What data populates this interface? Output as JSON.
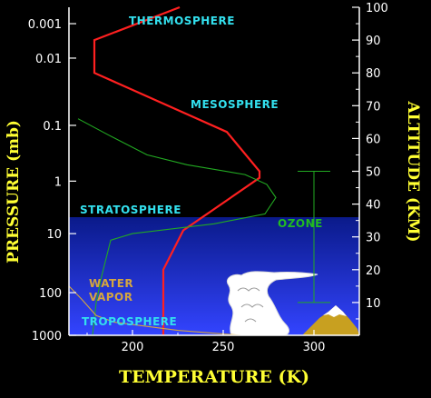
{
  "chart_data": {
    "type": "line",
    "title": "",
    "xlabel": "TEMPERATURE (K)",
    "ylabel_left": "PRESSURE (mb)",
    "ylabel_right": "ALTITUDE (KM)",
    "xlim": [
      165,
      325
    ],
    "x_ticks": [
      200,
      250,
      300
    ],
    "altitude_lim": [
      0,
      100
    ],
    "altitude_ticks": [
      10,
      20,
      30,
      40,
      50,
      60,
      70,
      80,
      90,
      100
    ],
    "pressure_ticks": [
      {
        "label": "0.001",
        "altitude": 95
      },
      {
        "label": "0.01",
        "altitude": 84.5
      },
      {
        "label": "0.1",
        "altitude": 64
      },
      {
        "label": "1",
        "altitude": 47
      },
      {
        "label": "10",
        "altitude": 31
      },
      {
        "label": "100",
        "altitude": 13
      },
      {
        "label": "1000",
        "altitude": 0
      }
    ],
    "series": [
      {
        "kind": "temperature",
        "color": "#ff2020",
        "points": [
          {
            "x": 217,
            "y": 0
          },
          {
            "x": 217,
            "y": 11
          },
          {
            "x": 217,
            "y": 20
          },
          {
            "x": 228,
            "y": 32
          },
          {
            "x": 270,
            "y": 48
          },
          {
            "x": 270,
            "y": 50
          },
          {
            "x": 252,
            "y": 62
          },
          {
            "x": 179,
            "y": 80
          },
          {
            "x": 179,
            "y": 90
          },
          {
            "x": 226,
            "y": 100
          }
        ]
      },
      {
        "kind": "ozone",
        "color": "#22aa22",
        "points": [
          {
            "x": 170,
            "y": 66
          },
          {
            "x": 187,
            "y": 61
          },
          {
            "x": 208,
            "y": 55
          },
          {
            "x": 230,
            "y": 52
          },
          {
            "x": 262,
            "y": 49
          },
          {
            "x": 274,
            "y": 46
          },
          {
            "x": 279,
            "y": 42
          },
          {
            "x": 273,
            "y": 37
          },
          {
            "x": 245,
            "y": 34
          },
          {
            "x": 200,
            "y": 31
          },
          {
            "x": 188,
            "y": 29
          },
          {
            "x": 183,
            "y": 18
          },
          {
            "x": 180,
            "y": 10
          },
          {
            "x": 178,
            "y": 0
          }
        ]
      },
      {
        "kind": "water-vapor",
        "color": "#d4a640",
        "points": [
          {
            "x": 165,
            "y": 15
          },
          {
            "x": 172,
            "y": 11
          },
          {
            "x": 180,
            "y": 6
          },
          {
            "x": 190,
            "y": 4
          },
          {
            "x": 225,
            "y": 1.5
          },
          {
            "x": 260,
            "y": 0
          }
        ]
      }
    ],
    "ozone_band": {
      "top": 50,
      "bottom": 10,
      "center_altitude": 33
    },
    "regions": [
      {
        "label": "THERMOSPHERE",
        "color": "#33e0ee"
      },
      {
        "label": "MESOSPHERE",
        "color": "#33e0ee"
      },
      {
        "label": "STRATOSPHERE",
        "color": "#33e0ee"
      },
      {
        "label": "OZONE",
        "color": "#22bb22"
      },
      {
        "label": "WATER",
        "color": "#d4a640"
      },
      {
        "label": "VAPOR",
        "color": "#d4a640"
      },
      {
        "label": "TROPOSPHERE",
        "color": "#33e0ee"
      }
    ],
    "colors": {
      "background": "#000000",
      "atmosphere_gradient_top": "#0a1a8a",
      "atmosphere_gradient_bottom": "#3344ff",
      "axis": "#ffffff",
      "mountain": "#c8a020",
      "snow": "#ffffff",
      "cloud": "#ffffff",
      "axis_title": "#ffff33"
    }
  }
}
